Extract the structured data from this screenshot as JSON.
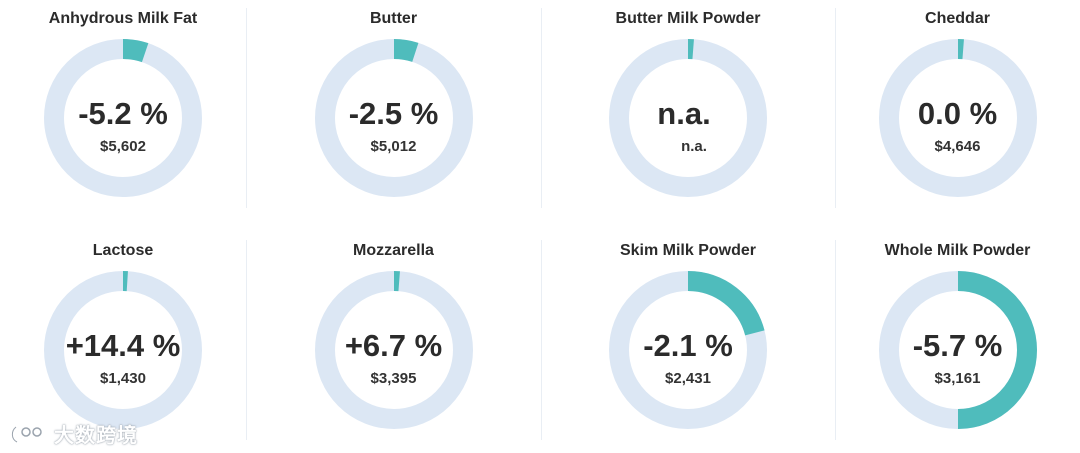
{
  "colors": {
    "track": "#dce7f4",
    "fill": "#4fbcbc",
    "text": "#2b2b2b"
  },
  "cards": [
    {
      "title": "Anhydrous Milk Fat",
      "change": "-5.2 %",
      "price": "$5,602",
      "fill_fraction": 0.052
    },
    {
      "title": "Butter",
      "change": "-2.5 %",
      "price": "$5,012",
      "fill_fraction": 0.05
    },
    {
      "title": "Butter Milk Powder",
      "change": "n.a.",
      "price": "n.a.",
      "fill_fraction": 0.012
    },
    {
      "title": "Cheddar",
      "change": "0.0 %",
      "price": "$4,646",
      "fill_fraction": 0.012
    },
    {
      "title": "Lactose",
      "change": "+14.4 %",
      "price": "$1,430",
      "fill_fraction": 0.01
    },
    {
      "title": "Mozzarella",
      "change": "+6.7 %",
      "price": "$3,395",
      "fill_fraction": 0.012
    },
    {
      "title": "Skim Milk Powder",
      "change": "-2.1 %",
      "price": "$2,431",
      "fill_fraction": 0.21
    },
    {
      "title": "Whole Milk Powder",
      "change": "-5.7 %",
      "price": "$3,161",
      "fill_fraction": 0.5
    }
  ],
  "watermark": {
    "text": "大数跨境",
    "icon": "brand-logo-icon"
  }
}
